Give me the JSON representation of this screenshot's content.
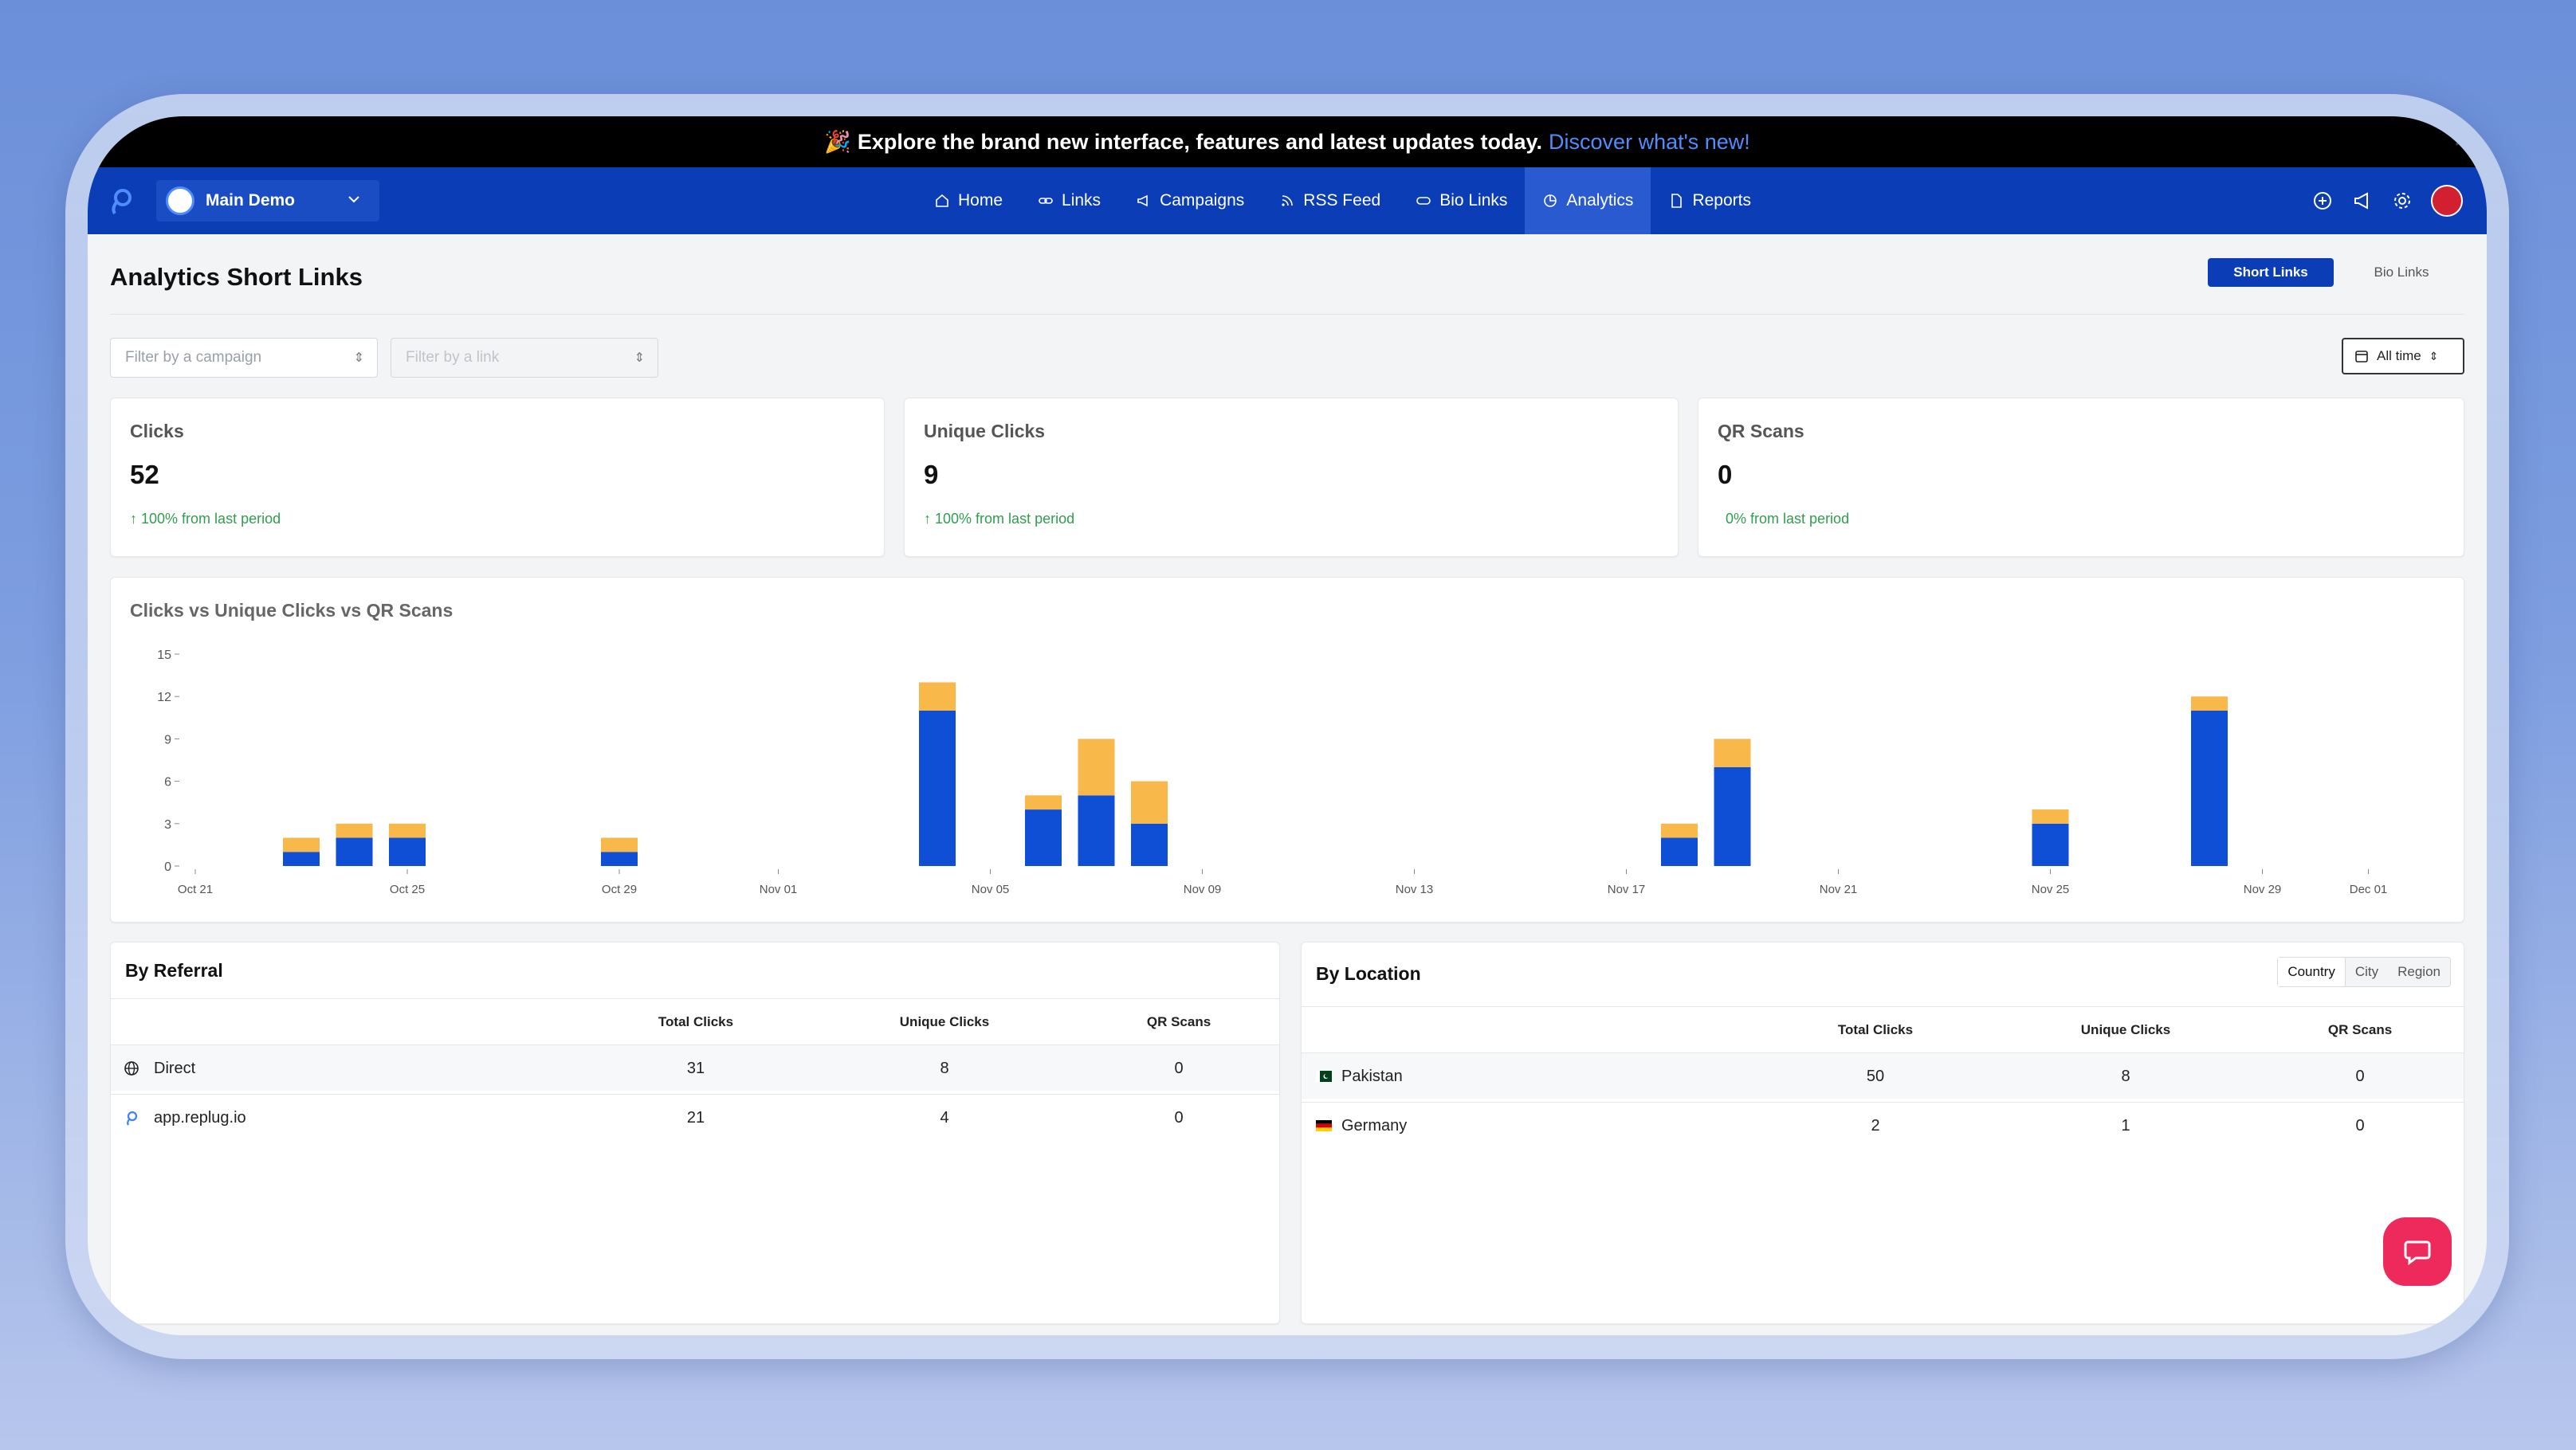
{
  "announcement": {
    "emoji": "🎉",
    "text": "Explore the brand new interface, features and latest updates today.",
    "link": "Discover what's new!"
  },
  "nav": {
    "workspace": "Main Demo",
    "items": [
      {
        "label": "Home",
        "icon": "home-icon"
      },
      {
        "label": "Links",
        "icon": "link-icon"
      },
      {
        "label": "Campaigns",
        "icon": "megaphone-icon"
      },
      {
        "label": "RSS Feed",
        "icon": "rss-icon"
      },
      {
        "label": "Bio Links",
        "icon": "bio-link-icon"
      },
      {
        "label": "Analytics",
        "icon": "analytics-icon"
      },
      {
        "label": "Reports",
        "icon": "report-icon"
      }
    ],
    "active": "Analytics"
  },
  "page": {
    "title": "Analytics Short Links",
    "toggle": [
      "Short Links",
      "Bio Links"
    ],
    "filter_campaign_placeholder": "Filter by a campaign",
    "filter_link_placeholder": "Filter by a link",
    "date_range": "All time"
  },
  "stats": [
    {
      "label": "Clicks",
      "value": "52",
      "change": "100% from last period",
      "arrow": "↑"
    },
    {
      "label": "Unique Clicks",
      "value": "9",
      "change": "100% from last period",
      "arrow": "↑"
    },
    {
      "label": "QR Scans",
      "value": "0",
      "change": "0% from last period",
      "arrow": ""
    }
  ],
  "chart_data": {
    "type": "bar",
    "stacked": true,
    "title": "Clicks vs Unique Clicks vs QR Scans",
    "ylim": [
      0,
      15
    ],
    "yticks": [
      0,
      3,
      6,
      9,
      12,
      15
    ],
    "x_tick_labels": [
      "Oct 21",
      "Oct 25",
      "Oct 29",
      "Nov 01",
      "Nov 05",
      "Nov 09",
      "Nov 13",
      "Nov 17",
      "Nov 21",
      "Nov 25",
      "Nov 29",
      "Dec 01"
    ],
    "x_tick_days": [
      0,
      4,
      8,
      11,
      15,
      19,
      23,
      27,
      31,
      35,
      39,
      41
    ],
    "bars": [
      {
        "day": 2,
        "blue": 1,
        "orange": 1
      },
      {
        "day": 3,
        "blue": 2,
        "orange": 1
      },
      {
        "day": 4,
        "blue": 2,
        "orange": 1
      },
      {
        "day": 8,
        "blue": 1,
        "orange": 1
      },
      {
        "day": 14,
        "blue": 11,
        "orange": 2
      },
      {
        "day": 16,
        "blue": 4,
        "orange": 1
      },
      {
        "day": 17,
        "blue": 5,
        "orange": 4
      },
      {
        "day": 18,
        "blue": 3,
        "orange": 3
      },
      {
        "day": 28,
        "blue": 2,
        "orange": 1
      },
      {
        "day": 29,
        "blue": 7,
        "orange": 2
      },
      {
        "day": 35,
        "blue": 3,
        "orange": 1
      },
      {
        "day": 38,
        "blue": 11,
        "orange": 1
      }
    ],
    "colors": {
      "blue": "#0f4fd6",
      "orange": "#f8b84a"
    }
  },
  "referral": {
    "title": "By Referral",
    "headers": [
      "Total Clicks",
      "Unique Clicks",
      "QR Scans"
    ],
    "rows": [
      {
        "name": "Direct",
        "icon": "globe-icon",
        "total": "31",
        "unique": "8",
        "qr": "0"
      },
      {
        "name": "app.replug.io",
        "icon": "replug-icon",
        "total": "21",
        "unique": "4",
        "qr": "0"
      }
    ]
  },
  "location": {
    "title": "By Location",
    "tabs": [
      "Country",
      "City",
      "Region"
    ],
    "headers": [
      "Total Clicks",
      "Unique Clicks",
      "QR Scans"
    ],
    "rows": [
      {
        "name": "Pakistan",
        "icon": "flag-pakistan-icon",
        "total": "50",
        "unique": "8",
        "qr": "0"
      },
      {
        "name": "Germany",
        "icon": "flag-germany-icon",
        "total": "2",
        "unique": "1",
        "qr": "0"
      }
    ]
  }
}
